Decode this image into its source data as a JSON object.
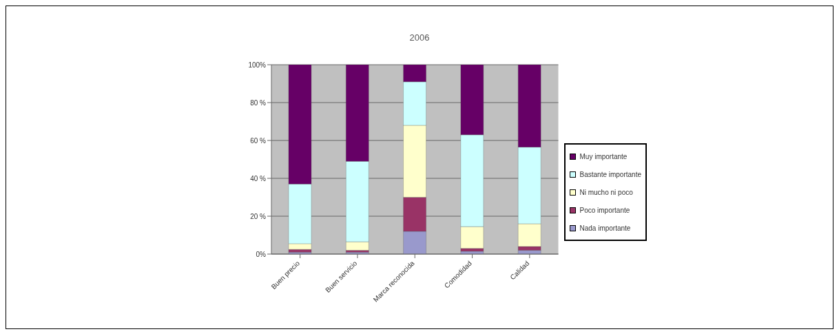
{
  "chart_data": {
    "type": "bar",
    "title": "2006",
    "stacked": true,
    "categories": [
      "Buen precio",
      "Buen servicio",
      "Marca reconocida",
      "Comodidad",
      "Calidad"
    ],
    "series": [
      {
        "name": "Nada importante",
        "color": "#9999cc",
        "values": [
          1,
          1,
          12,
          1.5,
          2
        ]
      },
      {
        "name": "Poco importante",
        "color": "#993366",
        "values": [
          1.5,
          1,
          18,
          1.5,
          2
        ]
      },
      {
        "name": "Ni mucho ni poco",
        "color": "#ffffcc",
        "values": [
          3,
          4.5,
          38,
          11.5,
          12
        ]
      },
      {
        "name": "Bastante importante",
        "color": "#ccffff",
        "values": [
          31.5,
          42.5,
          23,
          48.5,
          40.5
        ]
      },
      {
        "name": "Muy importante",
        "color": "#660066",
        "values": [
          63,
          51,
          9,
          37,
          43.5
        ]
      }
    ],
    "ylim": [
      0,
      100
    ],
    "yticks": [
      {
        "value": 0,
        "label": "0%"
      },
      {
        "value": 20,
        "label": "20 %"
      },
      {
        "value": 40,
        "label": "40 %"
      },
      {
        "value": 60,
        "label": "60 %"
      },
      {
        "value": 80,
        "label": "80 %"
      },
      {
        "value": 100,
        "label": "100%"
      }
    ],
    "grid": "y",
    "legend": "right"
  }
}
